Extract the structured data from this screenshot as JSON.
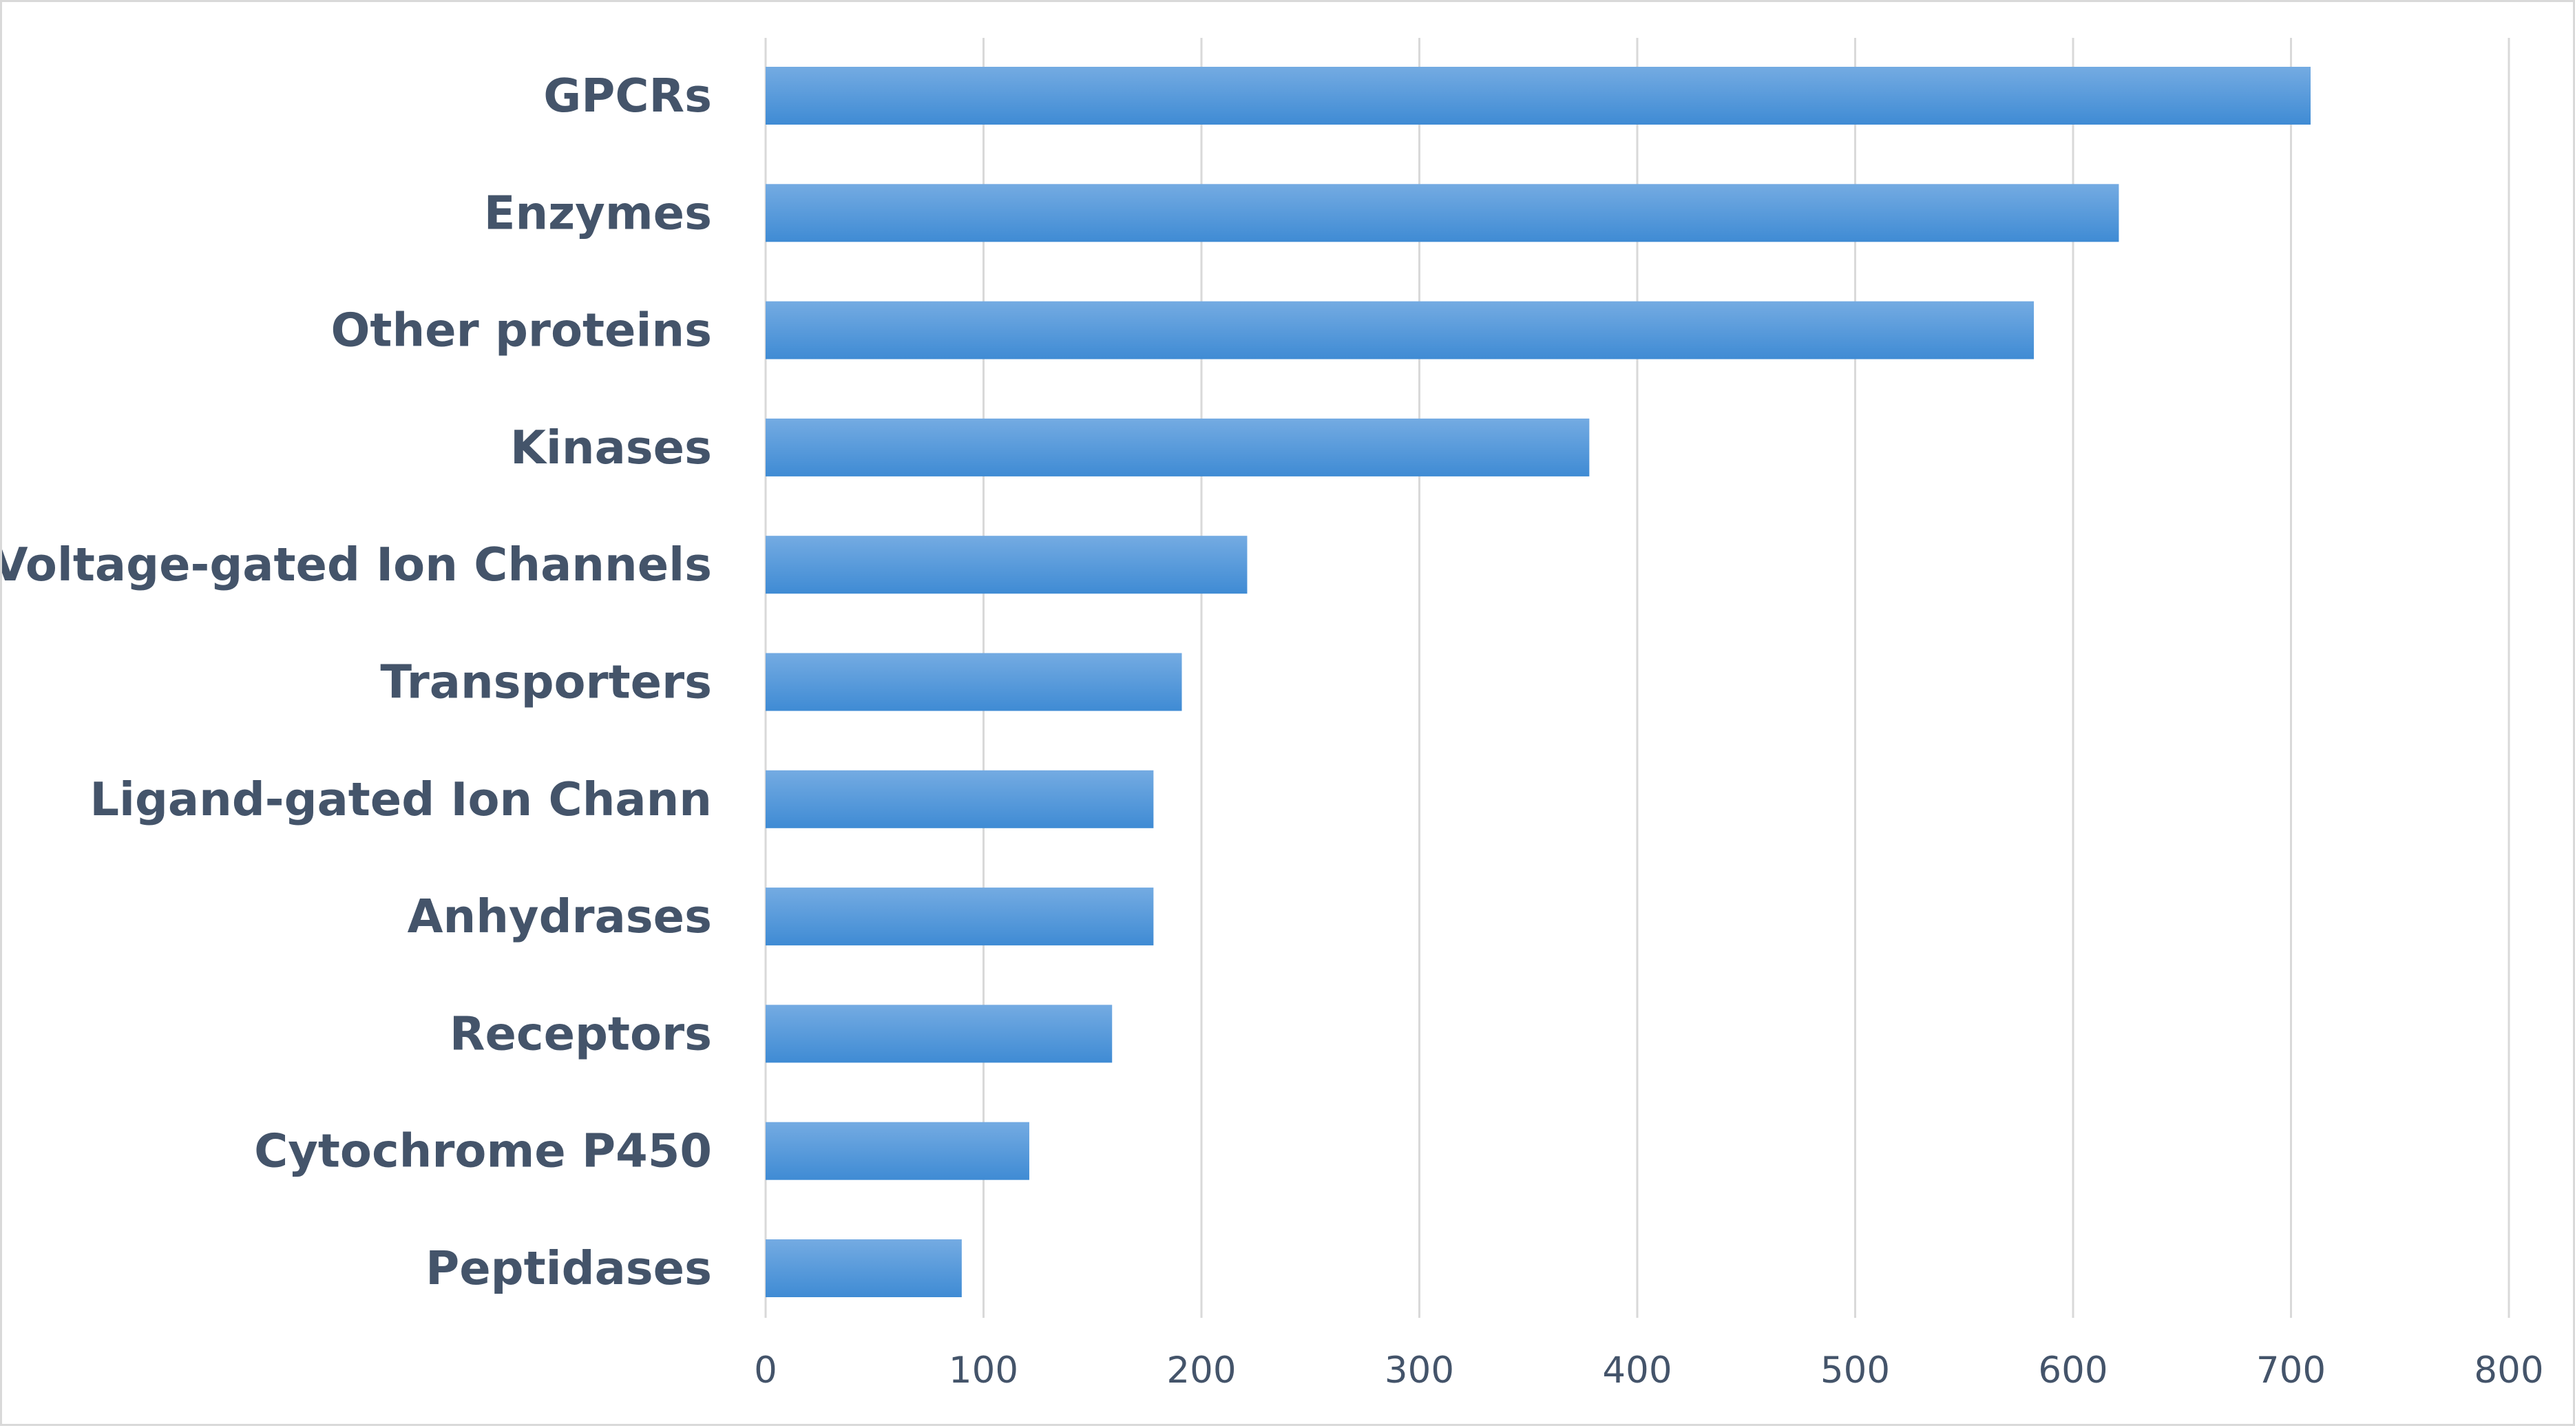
{
  "chart_data": {
    "type": "bar",
    "orientation": "horizontal",
    "title": "",
    "xlabel": "",
    "ylabel": "",
    "categories": [
      "GPCRs",
      "Enzymes",
      "Other proteins",
      "Kinases",
      "Voltage-gated Ion Channels",
      "Transporters",
      "Ligand-gated Ion Chann",
      "Anhydrases",
      "Receptors",
      "Cytochrome P450",
      "Peptidases"
    ],
    "values": [
      709,
      621,
      582,
      378,
      221,
      191,
      178,
      178,
      159,
      121,
      90
    ],
    "xlim": [
      0,
      800
    ],
    "xticks": [
      "0",
      "100",
      "200",
      "300",
      "400",
      "500",
      "600",
      "700",
      "800"
    ],
    "grid": true,
    "legend": "none",
    "bar_color_light": "#74abe2",
    "bar_color_dark": "#3f8bd4"
  }
}
